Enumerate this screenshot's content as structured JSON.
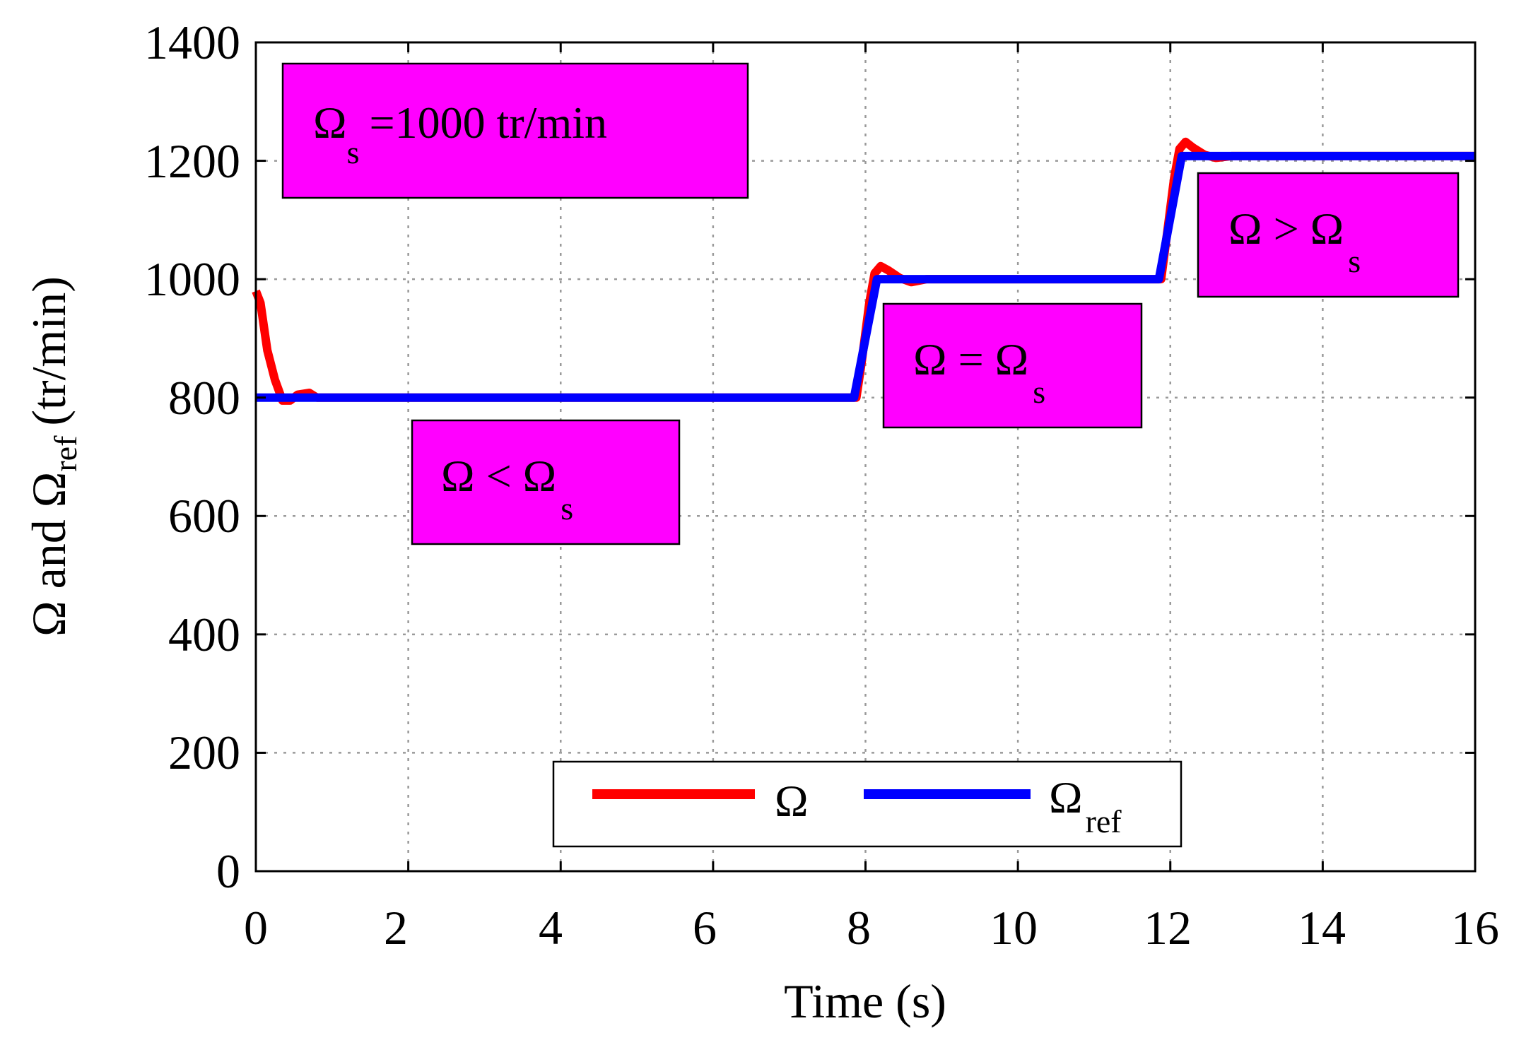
{
  "chart_data": {
    "type": "line",
    "title": "",
    "xlabel": "Time (s)",
    "ylabel": {
      "base": "Ω and Ω",
      "sub": "ref",
      "tail": "(tr/min)"
    },
    "xlim": [
      0,
      16
    ],
    "ylim": [
      0,
      1400
    ],
    "x_ticks": [
      "0",
      "2",
      "4",
      "6",
      "8",
      "10",
      "12",
      "14",
      "16"
    ],
    "y_ticks": [
      "0",
      "200",
      "400",
      "600",
      "800",
      "1000",
      "1200",
      "1400"
    ],
    "grid": true,
    "legend_position": "bottom-center",
    "series": [
      {
        "name": "Ω",
        "sub": "",
        "color": "#ff0000",
        "x": [
          0,
          0.06,
          0.15,
          0.25,
          0.35,
          0.45,
          0.55,
          0.7,
          0.8,
          7.88,
          7.95,
          8.05,
          8.12,
          8.2,
          8.3,
          8.45,
          8.6,
          8.8,
          11.88,
          11.95,
          12.05,
          12.12,
          12.2,
          12.3,
          12.45,
          12.6,
          12.8,
          16
        ],
        "values": [
          980,
          960,
          880,
          830,
          795,
          795,
          805,
          808,
          800,
          800,
          860,
          960,
          1010,
          1022,
          1015,
          1002,
          995,
          1000,
          1000,
          1070,
          1170,
          1220,
          1232,
          1222,
          1210,
          1205,
          1208,
          1208
        ]
      },
      {
        "name": "Ω",
        "sub": "ref",
        "color": "#0000ff",
        "x": [
          0,
          7.85,
          8.15,
          11.85,
          12.15,
          16
        ],
        "values": [
          800,
          800,
          1000,
          1000,
          1208,
          1208
        ]
      }
    ],
    "annotations": [
      {
        "id": "synchronous-speed",
        "main": "Ω",
        "sub": "s",
        "text": "=1000 tr/min",
        "background": "#ff00ff"
      },
      {
        "id": "below-synchronous",
        "main": "Ω < Ω",
        "sub": "s",
        "text": "",
        "background": "#ff00ff"
      },
      {
        "id": "at-synchronous",
        "main": "Ω = Ω",
        "sub": "s",
        "text": "",
        "background": "#ff00ff"
      },
      {
        "id": "above-synchronous",
        "main": "Ω > Ω",
        "sub": "s",
        "text": "",
        "background": "#ff00ff"
      }
    ]
  }
}
